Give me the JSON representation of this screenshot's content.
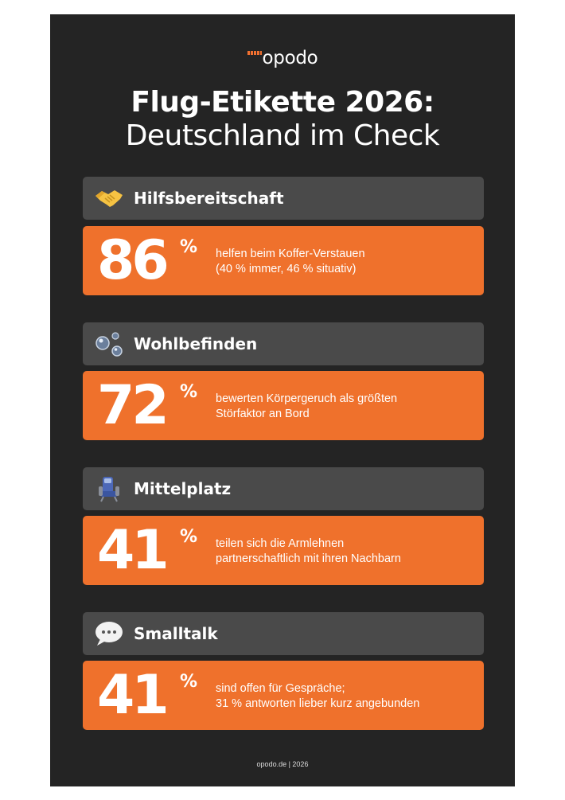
{
  "brand": {
    "name": "opodo"
  },
  "title": {
    "line1": "Flug-Etikette 2026:",
    "line2": "Deutschland im Check"
  },
  "accent_color": "#ef712c",
  "header_color": "#4a4a4a",
  "background_color": "#242424",
  "cards": [
    {
      "label": "Hilfsbereitschaft",
      "icon": "handshake-icon",
      "value": "86",
      "unit": "%",
      "desc_line1": "helfen beim Koffer-Verstauen",
      "desc_line2": "(40 % immer, 46 % situativ)"
    },
    {
      "label": "Wohlbefinden",
      "icon": "bubbles-icon",
      "value": "72",
      "unit": "%",
      "desc_line1": "bewerten Körpergeruch als größten",
      "desc_line2": "Störfaktor an Bord"
    },
    {
      "label": "Mittelplatz",
      "icon": "seat-icon",
      "value": "41",
      "unit": "%",
      "desc_line1": "teilen sich die Armlehnen",
      "desc_line2": "partnerschaftlich mit ihren Nachbarn"
    },
    {
      "label": "Smalltalk",
      "icon": "speech-bubble-icon",
      "value": "41",
      "unit": "%",
      "desc_line1": "sind offen für Gespräche;",
      "desc_line2": "31 % antworten lieber kurz angebunden"
    }
  ],
  "footer": {
    "text": "opodo.de | 2026"
  }
}
